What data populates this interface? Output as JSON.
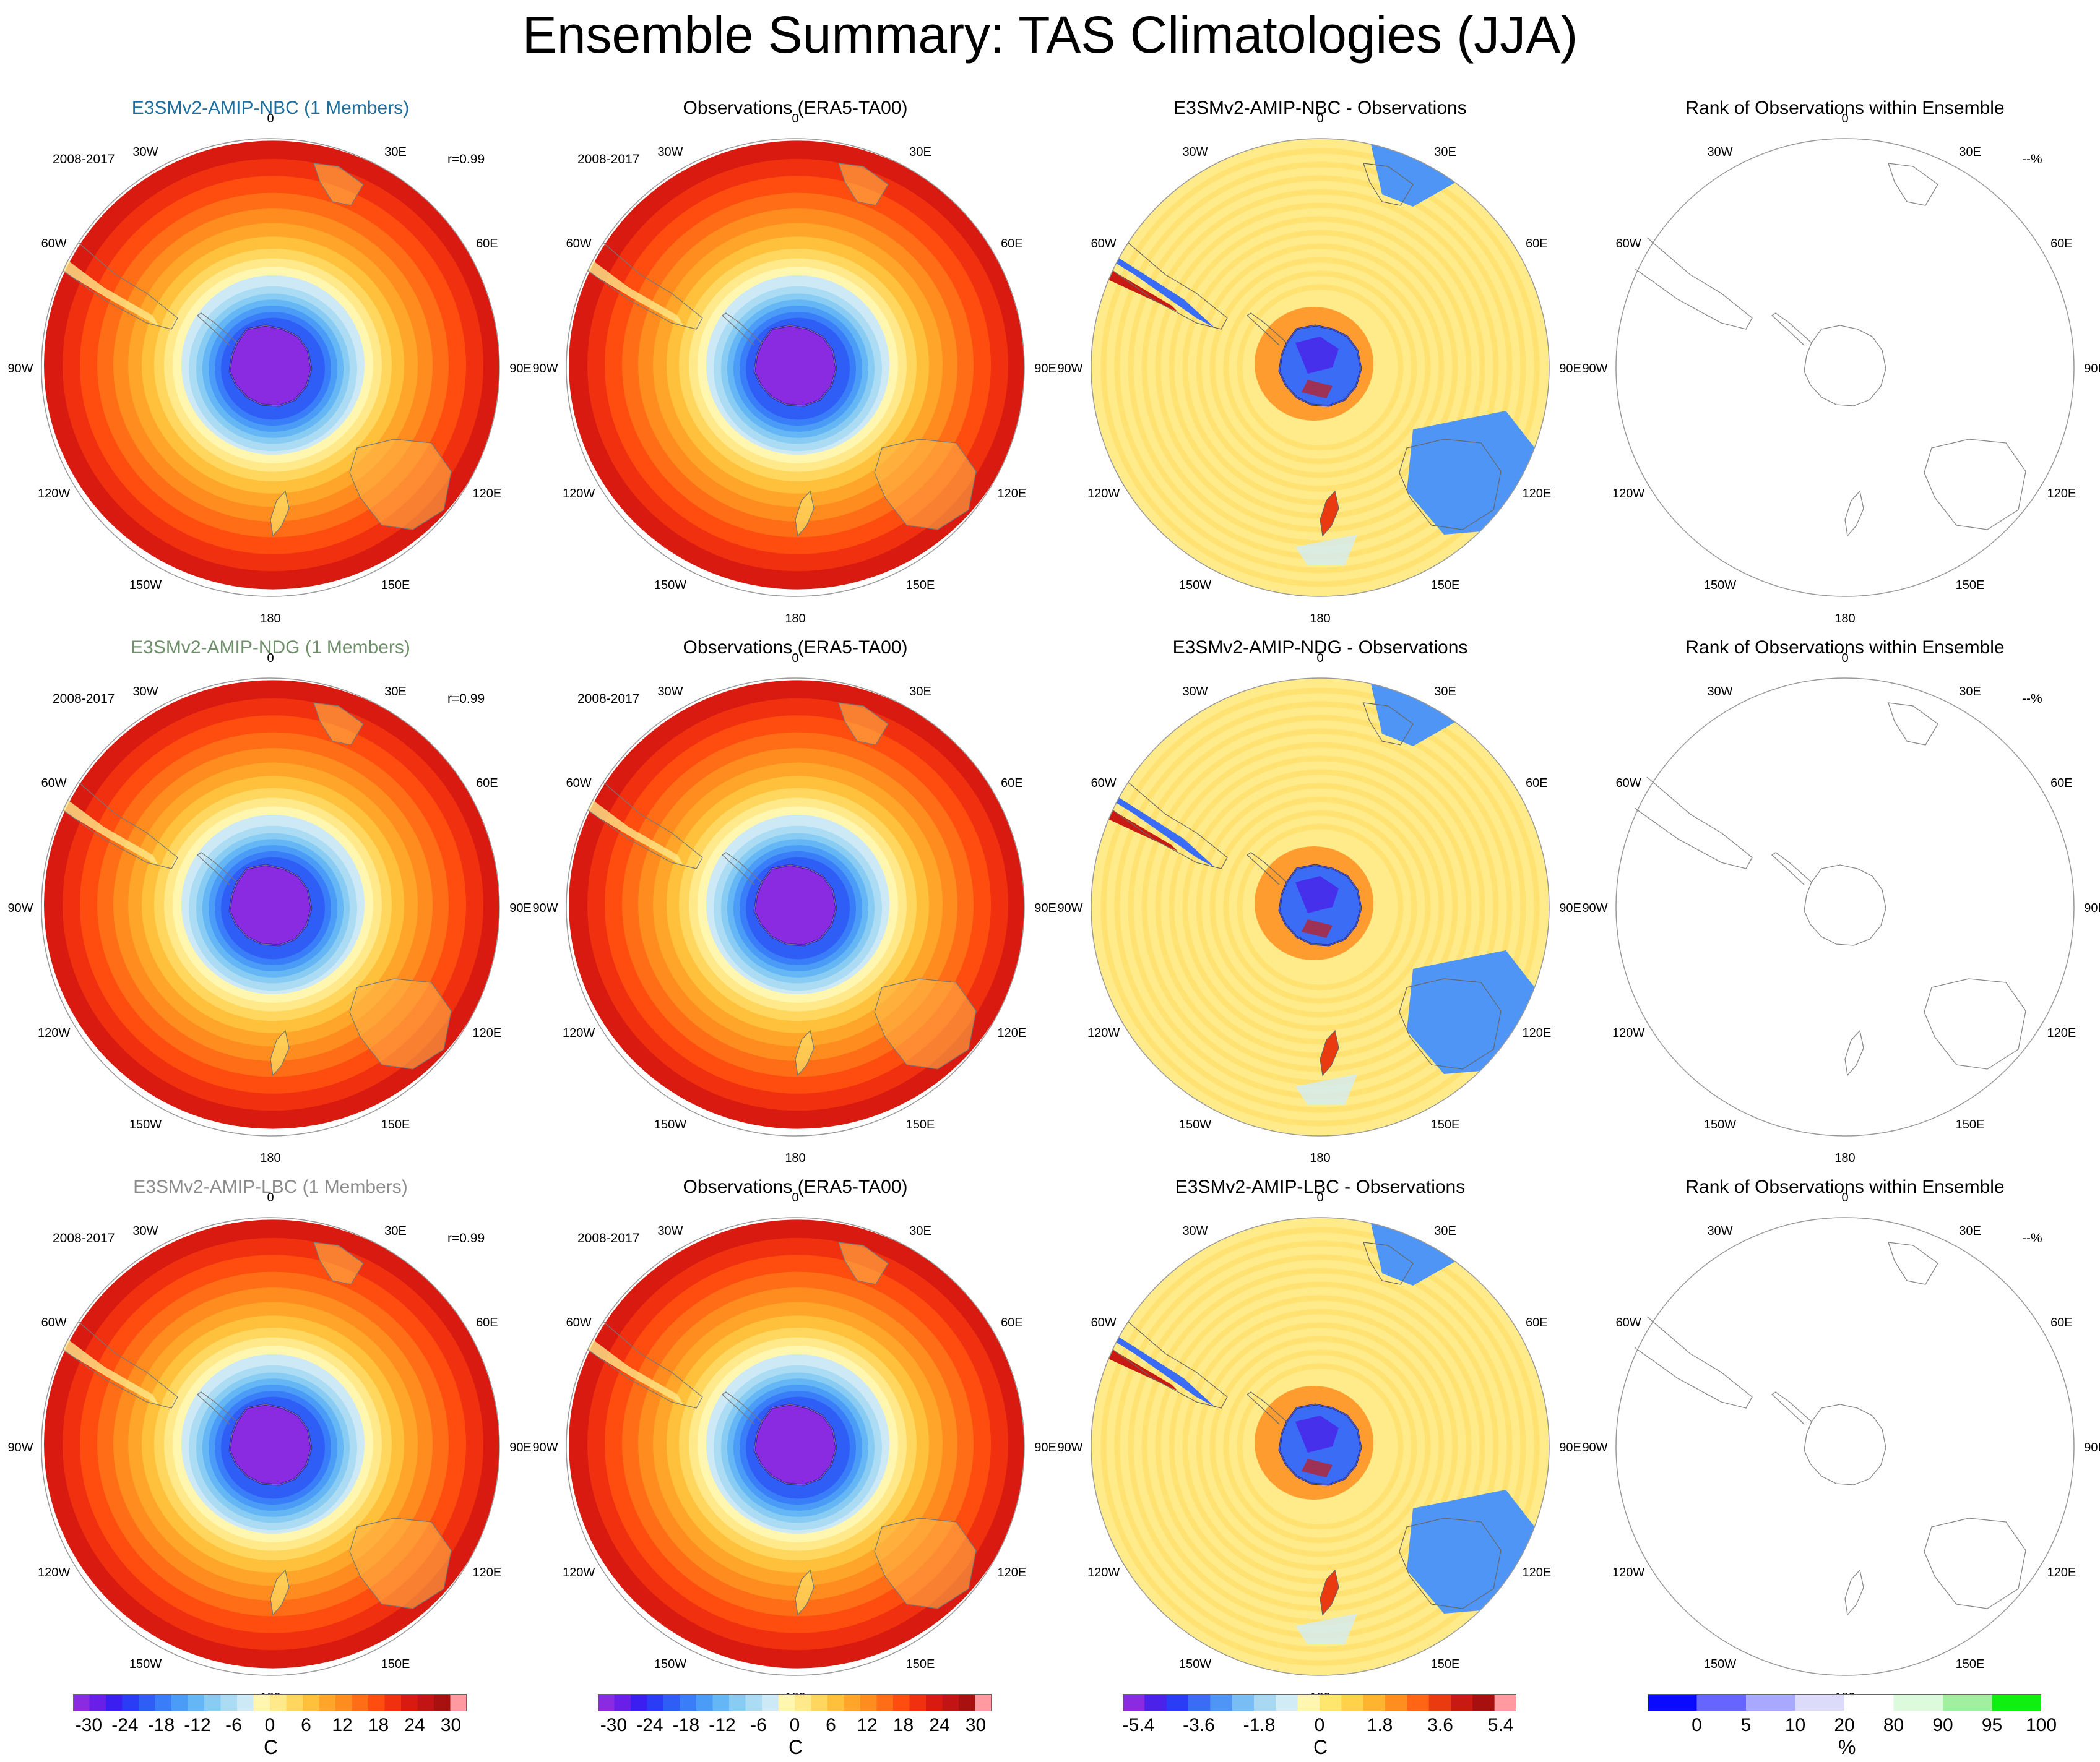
{
  "figure": {
    "title": "Ensemble Summary: TAS Climatologies (JJA)"
  },
  "colors": {
    "nbc_title": "#1f6fa0",
    "ndg_title": "#6e8f6a",
    "lbc_title": "#8c8c8c"
  },
  "longitude_labels": [
    "0",
    "30E",
    "60E",
    "90E",
    "120E",
    "150E",
    "180",
    "150W",
    "120W",
    "90W",
    "60W",
    "30W"
  ],
  "rows": [
    {
      "model_title": "E3SMv2-AMIP-NBC (1 Members)",
      "model_title_color": "#1f6fa0",
      "period": "2008-2017",
      "correlation": "r=0.99",
      "obs_title": "Observations (ERA5-TA00)",
      "obs_period": "2008-2017",
      "diff_title": "E3SMv2-AMIP-NBC - Observations",
      "rank_title": "Rank of Observations within Ensemble",
      "rank_value": "--%"
    },
    {
      "model_title": "E3SMv2-AMIP-NDG (1 Members)",
      "model_title_color": "#6e8f6a",
      "period": "2008-2017",
      "correlation": "r=0.99",
      "obs_title": "Observations (ERA5-TA00)",
      "obs_period": "2008-2017",
      "diff_title": "E3SMv2-AMIP-NDG - Observations",
      "rank_title": "Rank of Observations within Ensemble",
      "rank_value": "--%"
    },
    {
      "model_title": "E3SMv2-AMIP-LBC (1 Members)",
      "model_title_color": "#8c8c8c",
      "period": "2008-2017",
      "correlation": "r=0.99",
      "obs_title": "Observations (ERA5-TA00)",
      "obs_period": "2008-2017",
      "diff_title": "E3SMv2-AMIP-LBC - Observations",
      "rank_title": "Rank of Observations within Ensemble",
      "rank_value": "--%"
    }
  ],
  "colorbars": [
    {
      "unit": "C",
      "ticks": [
        "-30",
        "-24",
        "-18",
        "-12",
        "-6",
        "0",
        "6",
        "12",
        "18",
        "24",
        "30"
      ],
      "colors": [
        "#8a2be2",
        "#6a1fe8",
        "#3b1ff0",
        "#2a3cf5",
        "#2f5ef7",
        "#3a7df8",
        "#4a9cf7",
        "#64b6f5",
        "#88cbf3",
        "#acdcf4",
        "#cde9f6",
        "#fff6b0",
        "#ffe98a",
        "#ffd75e",
        "#ffc13c",
        "#ffa62a",
        "#ff8c1e",
        "#ff6e16",
        "#ff4d10",
        "#f0300e",
        "#d81a10",
        "#c21414",
        "#a91010",
        "#ff9aa0"
      ]
    },
    {
      "unit": "C",
      "ticks": [
        "-30",
        "-24",
        "-18",
        "-12",
        "-6",
        "0",
        "6",
        "12",
        "18",
        "24",
        "30"
      ],
      "colors": [
        "#8a2be2",
        "#6a1fe8",
        "#3b1ff0",
        "#2a3cf5",
        "#2f5ef7",
        "#3a7df8",
        "#4a9cf7",
        "#64b6f5",
        "#88cbf3",
        "#acdcf4",
        "#cde9f6",
        "#fff6b0",
        "#ffe98a",
        "#ffd75e",
        "#ffc13c",
        "#ffa62a",
        "#ff8c1e",
        "#ff6e16",
        "#ff4d10",
        "#f0300e",
        "#d81a10",
        "#c21414",
        "#a91010",
        "#ff9aa0"
      ]
    },
    {
      "unit": "C",
      "ticks": [
        "-5.4",
        "-3.6",
        "-1.8",
        "0",
        "1.8",
        "3.6",
        "5.4"
      ],
      "colors": [
        "#8a2be2",
        "#4a22ea",
        "#2a3cf5",
        "#3a6cf6",
        "#4f95f5",
        "#78bdf3",
        "#a8d8f2",
        "#d2ecf6",
        "#fff6b0",
        "#ffe76e",
        "#ffd24a",
        "#ffb430",
        "#ff8e1e",
        "#ff6514",
        "#ea3a10",
        "#c81a12",
        "#a81010",
        "#ff9aa0"
      ]
    },
    {
      "unit": "%",
      "ticks": [
        "0",
        "5",
        "10",
        "20",
        "80",
        "90",
        "95",
        "100"
      ],
      "colors": [
        "#0a0aff",
        "#6666ff",
        "#a8a8ff",
        "#dcdcfa",
        "#ffffff",
        "#dcfadc",
        "#a0f0a0",
        "#10f010"
      ]
    }
  ]
}
